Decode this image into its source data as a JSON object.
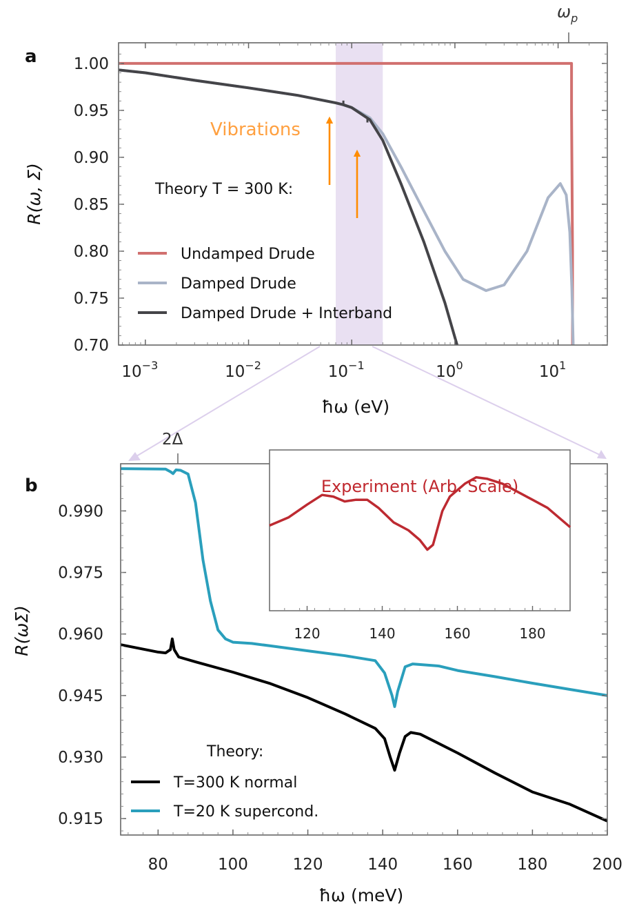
{
  "chart_data": [
    {
      "panel": "a",
      "type": "line",
      "xscale": "log",
      "xlabel": "ħω (eV)",
      "ylabel": "R(ω, Σ)",
      "xlim": [
        0.00055,
        30
      ],
      "ylim": [
        0.7,
        1.022
      ],
      "xticks": [
        0.001,
        0.01,
        0.1,
        1,
        10
      ],
      "xtick_labels": [
        {
          "base": "10",
          "exp": "−3"
        },
        {
          "base": "10",
          "exp": "−2"
        },
        {
          "base": "10",
          "exp": "−1"
        },
        {
          "base": "10",
          "exp": "0"
        },
        {
          "base": "10",
          "exp": "1"
        }
      ],
      "yticks": [
        0.7,
        0.75,
        0.8,
        0.85,
        0.9,
        0.95,
        1.0
      ],
      "ytick_labels": [
        "0.70",
        "0.75",
        "0.80",
        "0.85",
        "0.90",
        "0.95",
        "1.00"
      ],
      "top_tick": {
        "x": 14,
        "label": "ω",
        "sub": "p"
      },
      "shaded_region": [
        0.07,
        0.2
      ],
      "shade_color": "#e5daf0",
      "annotations": {
        "theory_label": "Theory T = 300 K:",
        "vibrations_label": "Vibrations",
        "vibration_arrows_x": [
          0.083,
          0.142
        ]
      },
      "legend_position": "lower-left",
      "series": [
        {
          "name": "Undamped Drude",
          "color": "#d1706f",
          "points": [
            [
              0.00055,
              1.0
            ],
            [
              13.5,
              1.0
            ],
            [
              13.5,
              0.95
            ],
            [
              13.8,
              0.8
            ],
            [
              13.8,
              0.7
            ]
          ]
        },
        {
          "name": "Damped Drude",
          "color": "#a9b4c8",
          "points": [
            [
              0.00055,
              0.993
            ],
            [
              0.001,
              0.99
            ],
            [
              0.003,
              0.982
            ],
            [
              0.01,
              0.974
            ],
            [
              0.03,
              0.966
            ],
            [
              0.07,
              0.958
            ],
            [
              0.083,
              0.956
            ],
            [
              0.1,
              0.953
            ],
            [
              0.15,
              0.942
            ],
            [
              0.2,
              0.925
            ],
            [
              0.3,
              0.89
            ],
            [
              0.5,
              0.843
            ],
            [
              0.8,
              0.8
            ],
            [
              1.2,
              0.77
            ],
            [
              2.0,
              0.758
            ],
            [
              3.0,
              0.764
            ],
            [
              5.0,
              0.8
            ],
            [
              8.0,
              0.857
            ],
            [
              10.5,
              0.872
            ],
            [
              12.0,
              0.86
            ],
            [
              13.0,
              0.82
            ],
            [
              13.6,
              0.76
            ],
            [
              14.0,
              0.7
            ]
          ]
        },
        {
          "name": "Damped Drude + Interband",
          "color": "#444448",
          "points": [
            [
              0.00055,
              0.993
            ],
            [
              0.001,
              0.99
            ],
            [
              0.003,
              0.982
            ],
            [
              0.01,
              0.974
            ],
            [
              0.03,
              0.966
            ],
            [
              0.07,
              0.958
            ],
            [
              0.083,
              0.956
            ],
            [
              0.1,
              0.953
            ],
            [
              0.15,
              0.94
            ],
            [
              0.2,
              0.918
            ],
            [
              0.3,
              0.872
            ],
            [
              0.5,
              0.81
            ],
            [
              0.8,
              0.745
            ],
            [
              1.05,
              0.7
            ]
          ]
        }
      ]
    },
    {
      "panel": "b",
      "type": "line",
      "xlabel": "ħω (meV)",
      "ylabel": "R(ωΣ)",
      "xlim": [
        70,
        200
      ],
      "ylim": [
        0.911,
        1.0015
      ],
      "xticks": [
        80,
        100,
        120,
        140,
        160,
        180,
        200
      ],
      "xtick_labels": [
        "80",
        "100",
        "120",
        "140",
        "160",
        "180",
        "200"
      ],
      "yticks": [
        0.915,
        0.93,
        0.945,
        0.96,
        0.975,
        0.99
      ],
      "ytick_labels": [
        "0.915",
        "0.930",
        "0.945",
        "0.960",
        "0.975",
        "0.990"
      ],
      "top_tick": {
        "x": 84,
        "label": "2Δ"
      },
      "legend_title": "Theory:",
      "legend_position": "lower-left",
      "series": [
        {
          "name": "T=300 K normal",
          "color": "#000000",
          "points": [
            [
              70,
              0.9574
            ],
            [
              80,
              0.9556
            ],
            [
              82,
              0.9554
            ],
            [
              83.3,
              0.9562
            ],
            [
              83.8,
              0.9588
            ],
            [
              84.3,
              0.9562
            ],
            [
              85.5,
              0.9544
            ],
            [
              90,
              0.9532
            ],
            [
              100,
              0.9507
            ],
            [
              110,
              0.9479
            ],
            [
              120,
              0.9445
            ],
            [
              130,
              0.9405
            ],
            [
              138,
              0.937
            ],
            [
              140.5,
              0.9345
            ],
            [
              142,
              0.93
            ],
            [
              143.2,
              0.9268
            ],
            [
              144.5,
              0.931
            ],
            [
              146,
              0.935
            ],
            [
              147.5,
              0.936
            ],
            [
              150,
              0.9356
            ],
            [
              160,
              0.931
            ],
            [
              170,
              0.9261
            ],
            [
              180,
              0.9215
            ],
            [
              190,
              0.9185
            ],
            [
              200,
              0.9144
            ]
          ]
        },
        {
          "name": "T=20 K supercond.",
          "color": "#2a9fbc",
          "points": [
            [
              70,
              1.0003
            ],
            [
              82,
              1.0002
            ],
            [
              83.4,
              0.9995
            ],
            [
              84,
              0.9991
            ],
            [
              84.8,
              1.0
            ],
            [
              86,
              0.9999
            ],
            [
              88,
              0.999
            ],
            [
              90,
              0.992
            ],
            [
              92,
              0.978
            ],
            [
              94,
              0.968
            ],
            [
              96,
              0.961
            ],
            [
              98,
              0.9588
            ],
            [
              100,
              0.958
            ],
            [
              105,
              0.9577
            ],
            [
              110,
              0.9571
            ],
            [
              120,
              0.9559
            ],
            [
              130,
              0.9547
            ],
            [
              138,
              0.9535
            ],
            [
              140.5,
              0.9505
            ],
            [
              142.5,
              0.945
            ],
            [
              143.2,
              0.9423
            ],
            [
              144,
              0.946
            ],
            [
              146,
              0.952
            ],
            [
              148,
              0.9527
            ],
            [
              155,
              0.9522
            ],
            [
              160,
              0.9511
            ],
            [
              170,
              0.9496
            ],
            [
              180,
              0.948
            ],
            [
              190,
              0.9465
            ],
            [
              200,
              0.945
            ]
          ]
        }
      ]
    },
    {
      "panel": "inset",
      "type": "line",
      "title": "Experiment (Arb. Scale)",
      "title_color": "#c0282e",
      "xlim": [
        110,
        190
      ],
      "ylim": [
        0,
        1
      ],
      "xticks": [
        120,
        140,
        160,
        180
      ],
      "xtick_labels": [
        "120",
        "140",
        "160",
        "180"
      ],
      "series": [
        {
          "color": "#bd2a31",
          "points": [
            [
              110,
              0.53
            ],
            [
              115,
              0.58
            ],
            [
              120,
              0.66
            ],
            [
              124,
              0.72
            ],
            [
              127,
              0.71
            ],
            [
              130,
              0.68
            ],
            [
              133,
              0.69
            ],
            [
              136,
              0.69
            ],
            [
              139,
              0.64
            ],
            [
              143,
              0.55
            ],
            [
              147,
              0.5
            ],
            [
              150,
              0.44
            ],
            [
              152,
              0.38
            ],
            [
              153.5,
              0.41
            ],
            [
              156,
              0.62
            ],
            [
              158,
              0.71
            ],
            [
              162,
              0.79
            ],
            [
              165,
              0.83
            ],
            [
              168,
              0.82
            ],
            [
              172,
              0.79
            ],
            [
              176,
              0.74
            ],
            [
              180,
              0.69
            ],
            [
              184,
              0.64
            ],
            [
              187,
              0.58
            ],
            [
              190,
              0.52
            ]
          ]
        }
      ]
    }
  ],
  "panel_labels": {
    "a": "a",
    "b": "b"
  }
}
